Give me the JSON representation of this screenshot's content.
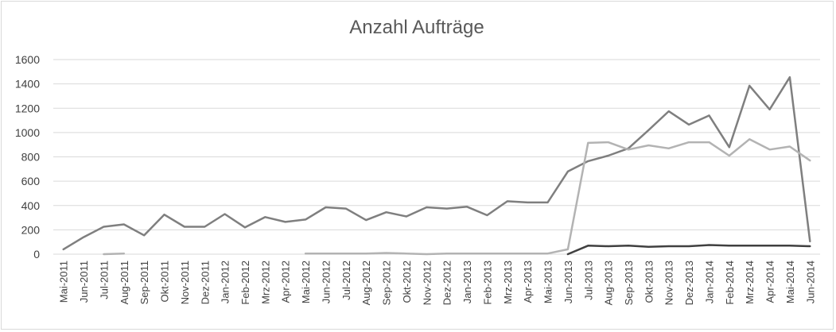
{
  "chart_data": {
    "type": "line",
    "title": "Anzahl Aufträge",
    "ylim": [
      0,
      1600
    ],
    "yticks": [
      0,
      200,
      400,
      600,
      800,
      1000,
      1200,
      1400,
      1600
    ],
    "grid": true,
    "legend": "none",
    "categories": [
      "Mai-2011",
      "Jun-2011",
      "Jul-2011",
      "Aug-2011",
      "Sep-2011",
      "Okt-2011",
      "Nov-2011",
      "Dez-2011",
      "Jan-2012",
      "Feb-2012",
      "Mrz-2012",
      "Apr-2012",
      "Mai-2012",
      "Jun-2012",
      "Jul-2012",
      "Aug-2012",
      "Sep-2012",
      "Okt-2012",
      "Nov-2012",
      "Dez-2012",
      "Jan-2013",
      "Feb-2013",
      "Mrz-2013",
      "Apr-2013",
      "Mai-2013",
      "Jun-2013",
      "Jul-2013",
      "Aug-2013",
      "Sep-2013",
      "Okt-2013",
      "Nov-2013",
      "Dez-2013",
      "Jan-2014",
      "Feb-2014",
      "Mrz-2014",
      "Apr-2014",
      "Mai-2014",
      "Jun-2014"
    ],
    "series": [
      {
        "color": "#7f7f7f",
        "values": [
          40,
          140,
          225,
          245,
          155,
          325,
          225,
          225,
          330,
          220,
          305,
          265,
          285,
          385,
          375,
          280,
          345,
          310,
          385,
          375,
          390,
          320,
          435,
          425,
          425,
          680,
          765,
          810,
          870,
          1020,
          1175,
          1065,
          1140,
          880,
          1385,
          1190,
          1455,
          105
        ]
      },
      {
        "color": "#b3b3b3",
        "values": [
          null,
          null,
          0,
          5,
          null,
          null,
          null,
          null,
          null,
          null,
          null,
          null,
          5,
          5,
          5,
          5,
          10,
          5,
          0,
          5,
          5,
          5,
          5,
          5,
          5,
          40,
          915,
          920,
          860,
          895,
          870,
          920,
          920,
          810,
          945,
          860,
          885,
          770
        ]
      },
      {
        "color": "#404040",
        "values": [
          null,
          null,
          null,
          null,
          null,
          null,
          null,
          null,
          null,
          null,
          null,
          null,
          null,
          null,
          null,
          null,
          null,
          null,
          null,
          null,
          null,
          null,
          null,
          null,
          null,
          0,
          70,
          65,
          70,
          60,
          65,
          65,
          75,
          70,
          70,
          70,
          70,
          65
        ]
      }
    ]
  }
}
